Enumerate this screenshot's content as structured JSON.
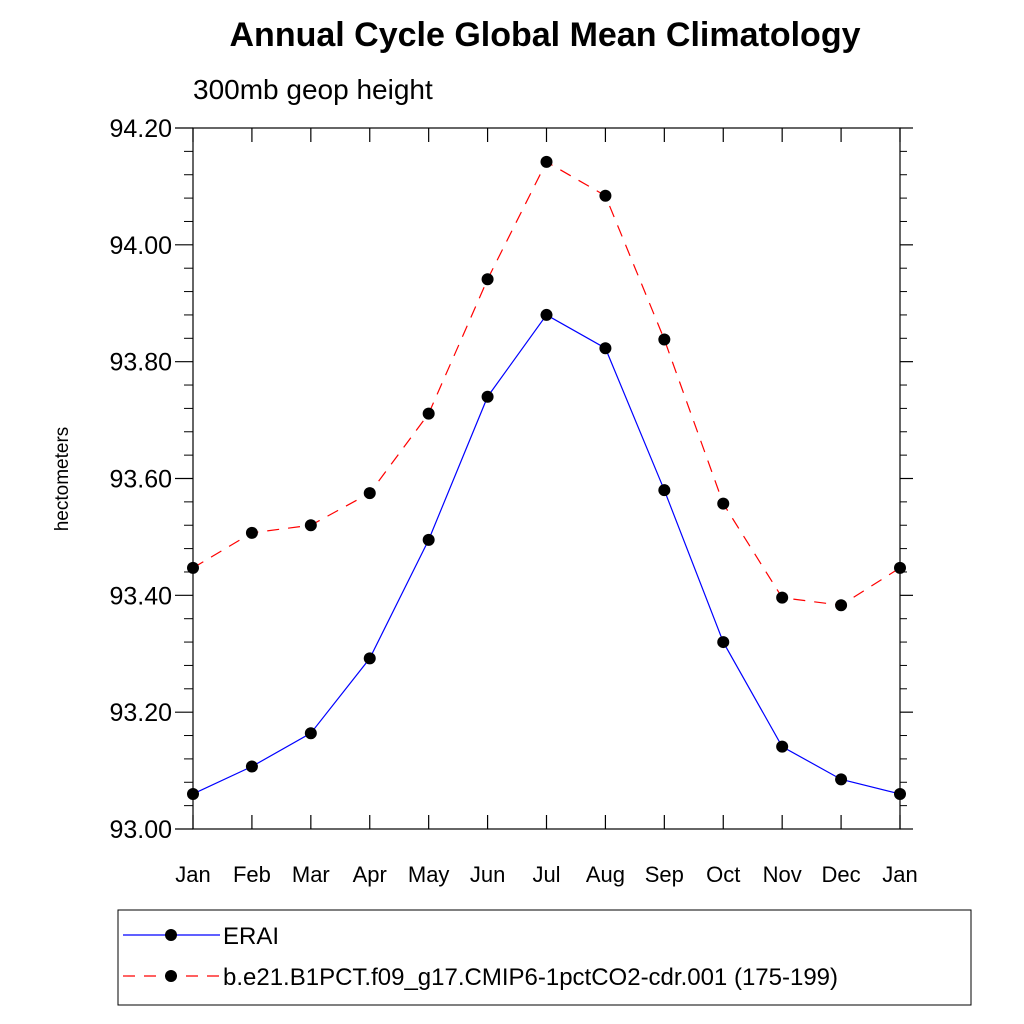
{
  "chart_data": {
    "type": "line",
    "title": "Annual Cycle Global Mean Climatology",
    "subtitle": "300mb geop height",
    "xlabel": "",
    "ylabel": "hectometers",
    "categories": [
      "Jan",
      "Feb",
      "Mar",
      "Apr",
      "May",
      "Jun",
      "Jul",
      "Aug",
      "Sep",
      "Oct",
      "Nov",
      "Dec",
      "Jan"
    ],
    "ylim": [
      93.0,
      94.2
    ],
    "yticks": [
      "93.00",
      "93.20",
      "93.40",
      "93.60",
      "93.80",
      "94.00",
      "94.20"
    ],
    "grid": false,
    "legend_position": "bottom",
    "series": [
      {
        "name": "ERAI",
        "color": "#0000ff",
        "line_style": "solid",
        "marker": "filled-circle",
        "values": [
          93.06,
          93.107,
          93.164,
          93.292,
          93.495,
          93.74,
          93.88,
          93.823,
          93.58,
          93.32,
          93.141,
          93.085,
          93.06
        ]
      },
      {
        "name": "b.e21.B1PCT.f09_g17.CMIP6-1pctCO2-cdr.001 (175-199)",
        "color": "#ff0000",
        "line_style": "dashed",
        "marker": "filled-circle",
        "values": [
          93.447,
          93.507,
          93.52,
          93.575,
          93.711,
          93.941,
          94.142,
          94.084,
          93.838,
          93.557,
          93.396,
          93.383,
          93.447
        ]
      }
    ]
  }
}
